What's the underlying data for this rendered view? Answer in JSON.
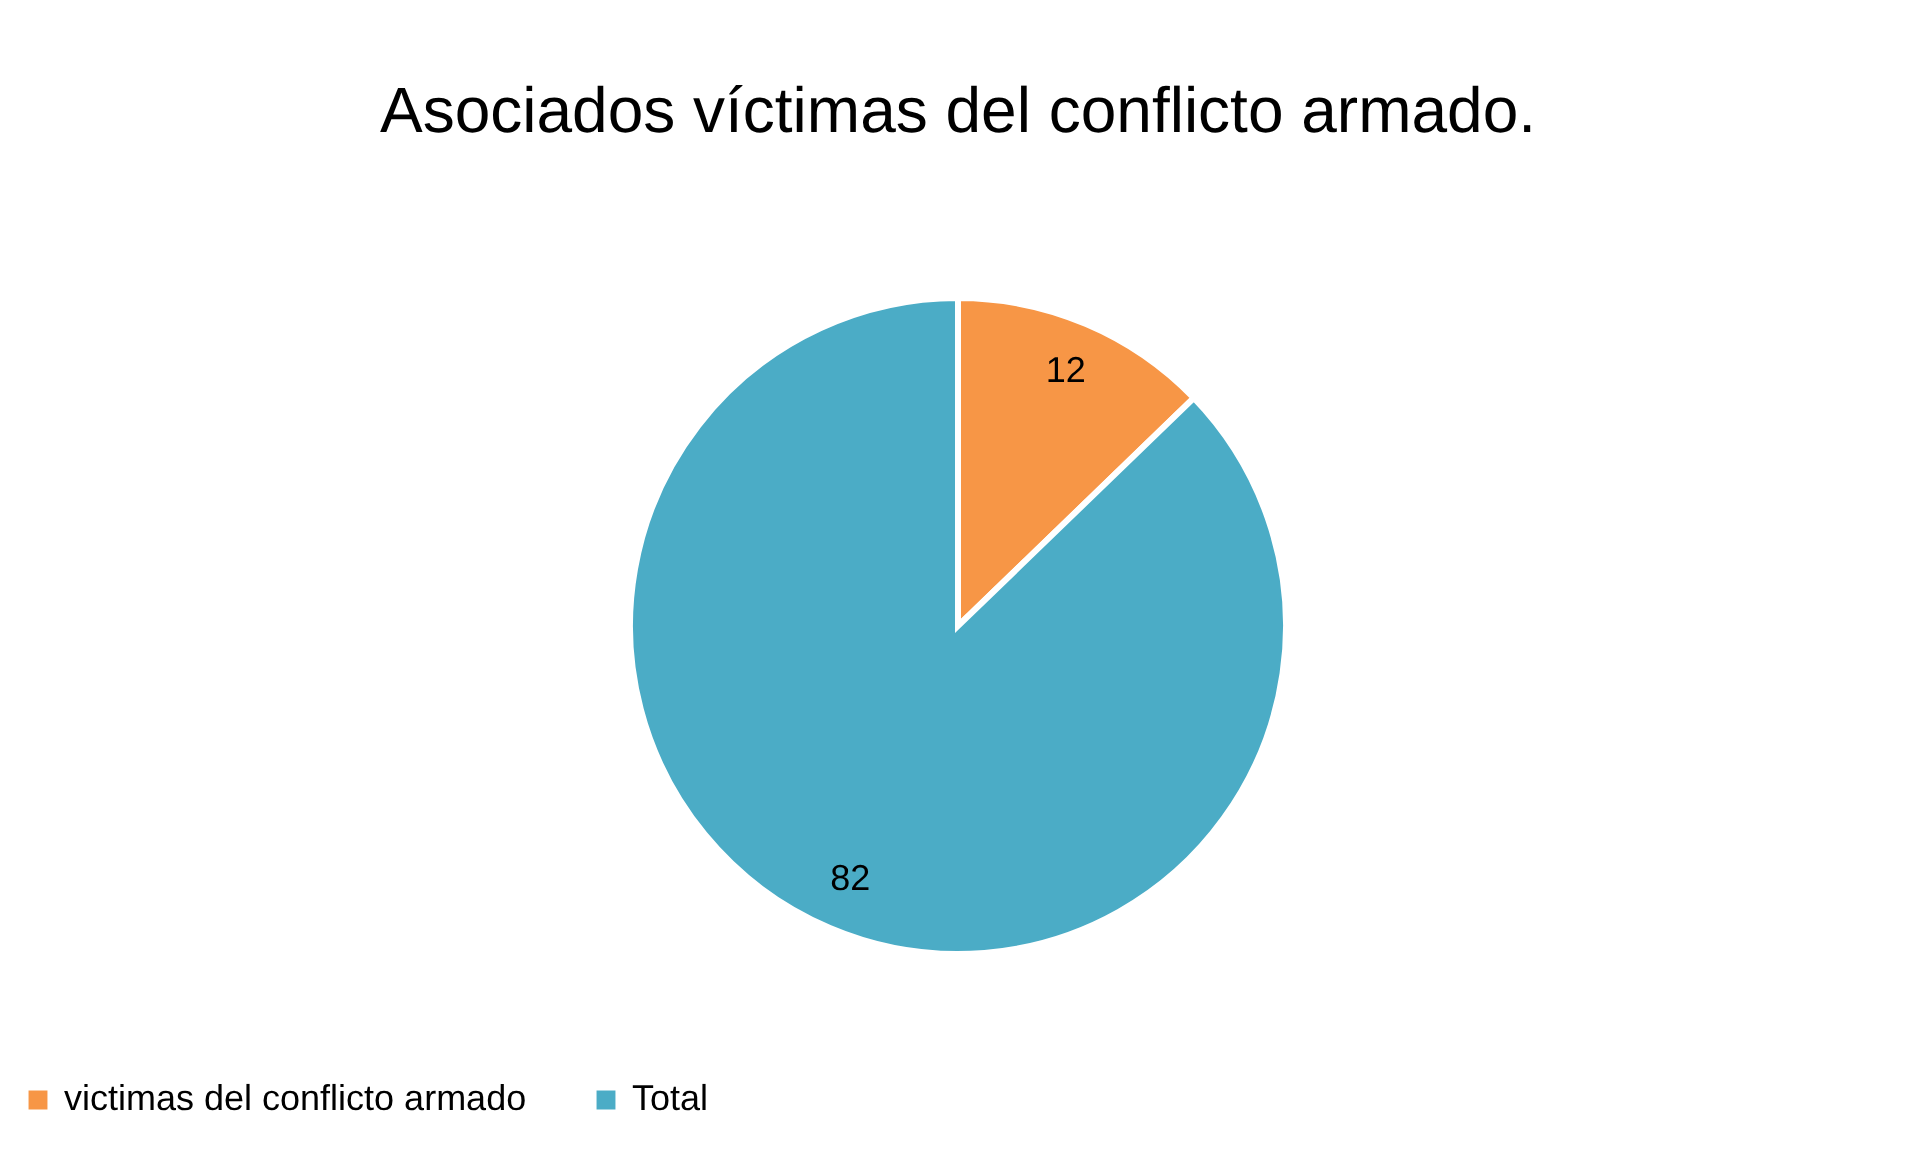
{
  "chart_data": {
    "type": "pie",
    "title": "Asociados víctimas del conflicto armado.",
    "categories": [
      "victimas del conflicto armado",
      "Total"
    ],
    "values": [
      12,
      82
    ],
    "colors": [
      "#f79646",
      "#4bacc6"
    ],
    "data_labels": true,
    "legend": "bottom"
  }
}
